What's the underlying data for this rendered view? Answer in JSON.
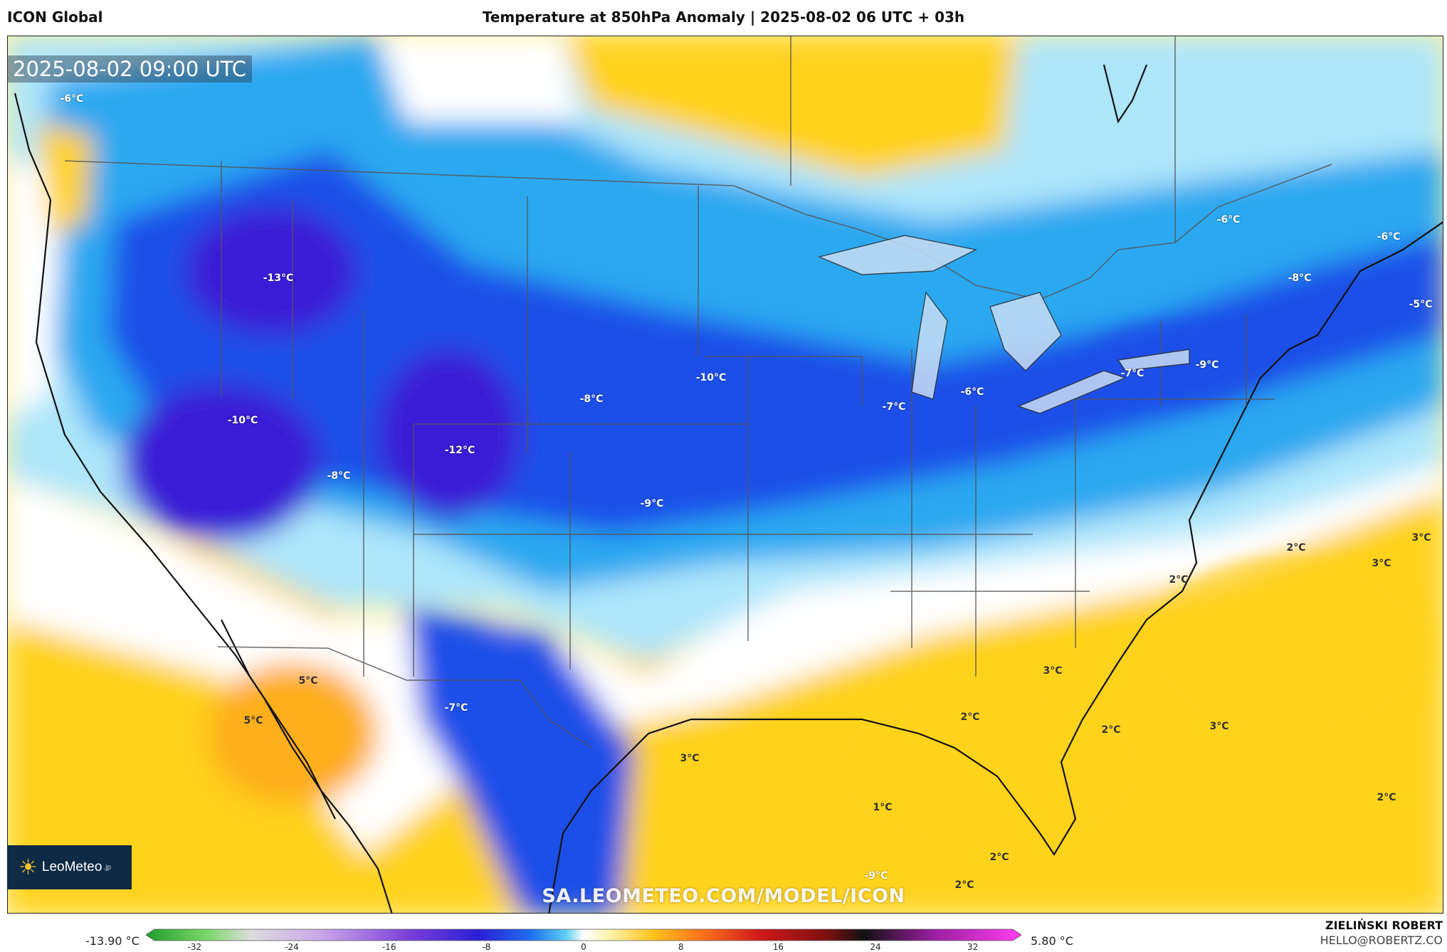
{
  "header": {
    "model": "ICON Global",
    "title": "Temperature at 850hPa Anomaly | 2025-08-02 06 UTC + 03h"
  },
  "map": {
    "timestamp": "2025-08-02 09:00 UTC",
    "watermark": "SA.LEOMETEO.COM/MODEL/ICON",
    "labels": [
      {
        "text": "-6°C",
        "kind": "cold"
      },
      {
        "text": "-13°C",
        "kind": "cold"
      },
      {
        "text": "-10°C",
        "kind": "cold"
      },
      {
        "text": "-8°C",
        "kind": "cold"
      },
      {
        "text": "-12°C",
        "kind": "cold"
      },
      {
        "text": "-8°C",
        "kind": "cold"
      },
      {
        "text": "-10°C",
        "kind": "cold"
      },
      {
        "text": "-9°C",
        "kind": "cold"
      },
      {
        "text": "-7°C",
        "kind": "cold"
      },
      {
        "text": "-6°C",
        "kind": "cold"
      },
      {
        "text": "-7°C",
        "kind": "cold"
      },
      {
        "text": "-9°C",
        "kind": "cold"
      },
      {
        "text": "-6°C",
        "kind": "cold"
      },
      {
        "text": "-6°C",
        "kind": "cold"
      },
      {
        "text": "-8°C",
        "kind": "cold"
      },
      {
        "text": "-5°C",
        "kind": "cold"
      },
      {
        "text": "-7°C",
        "kind": "cold"
      },
      {
        "text": "-9°C",
        "kind": "cold"
      },
      {
        "text": "5°C",
        "kind": "warm"
      },
      {
        "text": "5°C",
        "kind": "warm"
      },
      {
        "text": "3°C",
        "kind": "warm"
      },
      {
        "text": "3°C",
        "kind": "warm"
      },
      {
        "text": "2°C",
        "kind": "warm"
      },
      {
        "text": "2°C",
        "kind": "warm"
      },
      {
        "text": "3°C",
        "kind": "warm"
      },
      {
        "text": "3°C",
        "kind": "warm"
      },
      {
        "text": "2°C",
        "kind": "warm"
      },
      {
        "text": "2°C",
        "kind": "warm"
      },
      {
        "text": "3°C",
        "kind": "warm"
      },
      {
        "text": "2°C",
        "kind": "warm"
      },
      {
        "text": "1°C",
        "kind": "warm"
      },
      {
        "text": "2°C",
        "kind": "warm"
      },
      {
        "text": "2°C",
        "kind": "warm"
      }
    ]
  },
  "logo": {
    "name": "LeoMeteo",
    "suffix": ".jp",
    "icon": "sun-icon"
  },
  "legend": {
    "min_label": "-13.90 °C",
    "max_label": "5.80 °C",
    "ticks": [
      "-32",
      "-24",
      "-16",
      "-8",
      "0",
      "8",
      "16",
      "24",
      "32"
    ],
    "range": [
      -36,
      36
    ]
  },
  "author": {
    "name": "ZIELIŃSKI ROBERT",
    "email": "HELLO@ROBERTZ.CO"
  },
  "colors": {
    "deep_cold": "#3a1fd6",
    "cold": "#1e4fe8",
    "cool": "#2aa8f0",
    "light_cool": "#aee6fa",
    "neutral": "#ffffff",
    "light_warm": "#fff3a8",
    "warm": "#ffd21a",
    "hot": "#ffae1a"
  }
}
